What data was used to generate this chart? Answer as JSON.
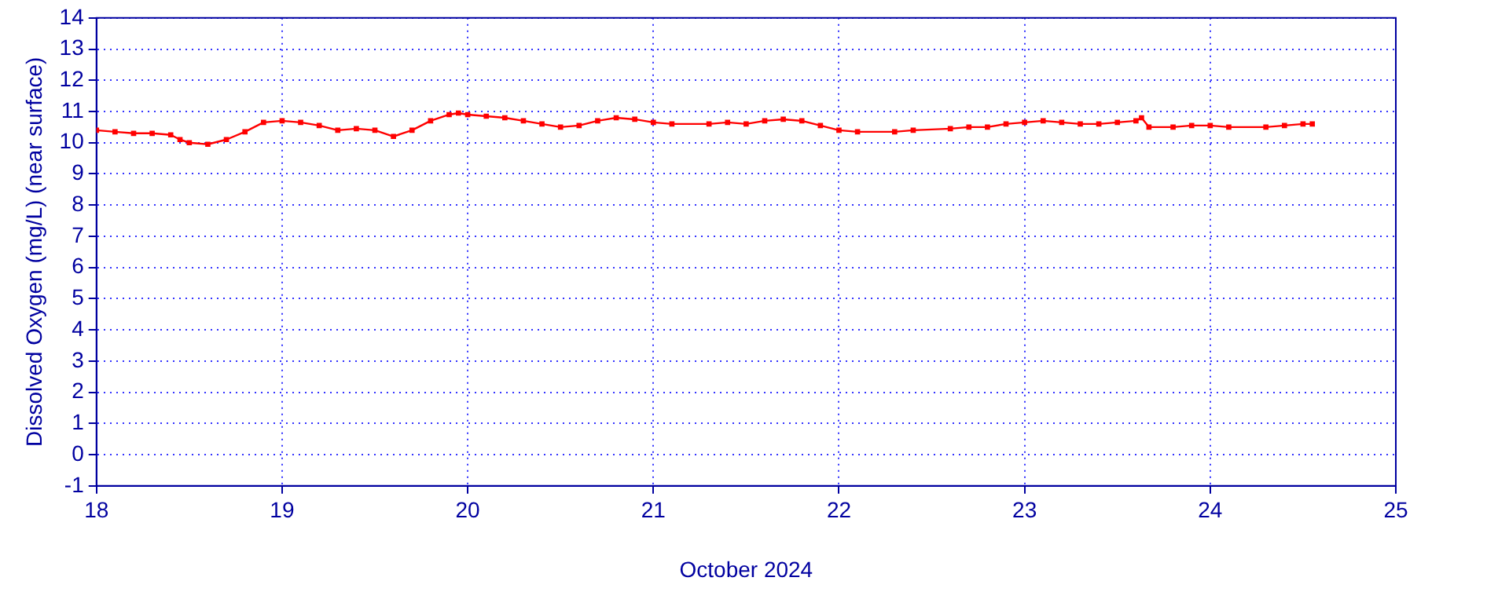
{
  "chart_data": {
    "type": "line",
    "xlabel": "October 2024",
    "ylabel": "Dissolved Oxygen (mg/L) (near surface)",
    "x": [
      18.0,
      18.1,
      18.2,
      18.3,
      18.4,
      18.45,
      18.5,
      18.6,
      18.7,
      18.8,
      18.9,
      19.0,
      19.1,
      19.2,
      19.3,
      19.4,
      19.5,
      19.6,
      19.7,
      19.8,
      19.9,
      19.95,
      20.0,
      20.1,
      20.2,
      20.3,
      20.4,
      20.5,
      20.6,
      20.7,
      20.8,
      20.9,
      21.0,
      21.1,
      21.3,
      21.4,
      21.5,
      21.6,
      21.7,
      21.8,
      21.9,
      22.0,
      22.1,
      22.3,
      22.4,
      22.6,
      22.7,
      22.8,
      22.9,
      23.0,
      23.1,
      23.2,
      23.3,
      23.4,
      23.5,
      23.6,
      23.63,
      23.67,
      23.8,
      23.9,
      24.0,
      24.1,
      24.3,
      24.4,
      24.5,
      24.55
    ],
    "series": [
      {
        "color": "#ff0000",
        "values": [
          10.4,
          10.35,
          10.3,
          10.3,
          10.25,
          10.1,
          10.0,
          9.95,
          10.1,
          10.35,
          10.65,
          10.7,
          10.65,
          10.55,
          10.4,
          10.45,
          10.4,
          10.2,
          10.4,
          10.7,
          10.9,
          10.95,
          10.9,
          10.85,
          10.8,
          10.7,
          10.6,
          10.5,
          10.55,
          10.7,
          10.8,
          10.75,
          10.65,
          10.6,
          10.6,
          10.65,
          10.6,
          10.7,
          10.75,
          10.7,
          10.55,
          10.4,
          10.35,
          10.35,
          10.4,
          10.45,
          10.5,
          10.5,
          10.6,
          10.65,
          10.7,
          10.65,
          10.6,
          10.6,
          10.65,
          10.7,
          10.8,
          10.5,
          10.5,
          10.55,
          10.55,
          10.5,
          10.5,
          10.55,
          10.6,
          10.6
        ]
      }
    ],
    "xlim": [
      18,
      25
    ],
    "xticks": [
      18,
      19,
      20,
      21,
      22,
      23,
      24,
      25
    ],
    "ylim": [
      -1,
      14
    ],
    "yticks": [
      -1,
      0,
      1,
      2,
      3,
      4,
      5,
      6,
      7,
      8,
      9,
      10,
      11,
      12,
      13,
      14
    ],
    "grid": true,
    "marker": "square",
    "line_style": "solid",
    "legend": false
  }
}
